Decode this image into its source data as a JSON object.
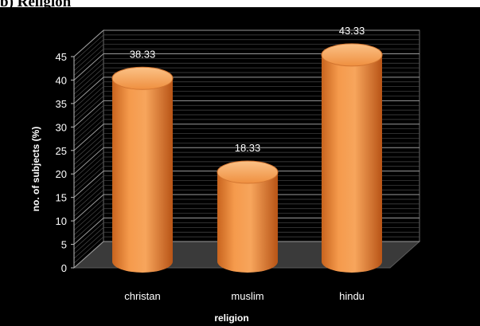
{
  "heading": "b)   Religion",
  "chart_data": {
    "type": "bar",
    "title": "",
    "categories": [
      "christan",
      "muslim",
      "hindu"
    ],
    "values": [
      38.33,
      18.33,
      43.33
    ],
    "data_labels": [
      "38.33",
      "18.33",
      "43.33"
    ],
    "xlabel": "religion",
    "ylabel": "no. of subjects (%)",
    "ylim": [
      0,
      45
    ],
    "yticks": [
      0,
      5,
      10,
      15,
      20,
      25,
      30,
      35,
      40,
      45
    ],
    "grid": true,
    "legend": "none",
    "style": "3d-cylinder",
    "colors": {
      "background": "#000000",
      "bar": "#f08a3a",
      "bar_top": "#f7a860",
      "grid": "#8a8a8a",
      "text": "#ffffff"
    }
  }
}
